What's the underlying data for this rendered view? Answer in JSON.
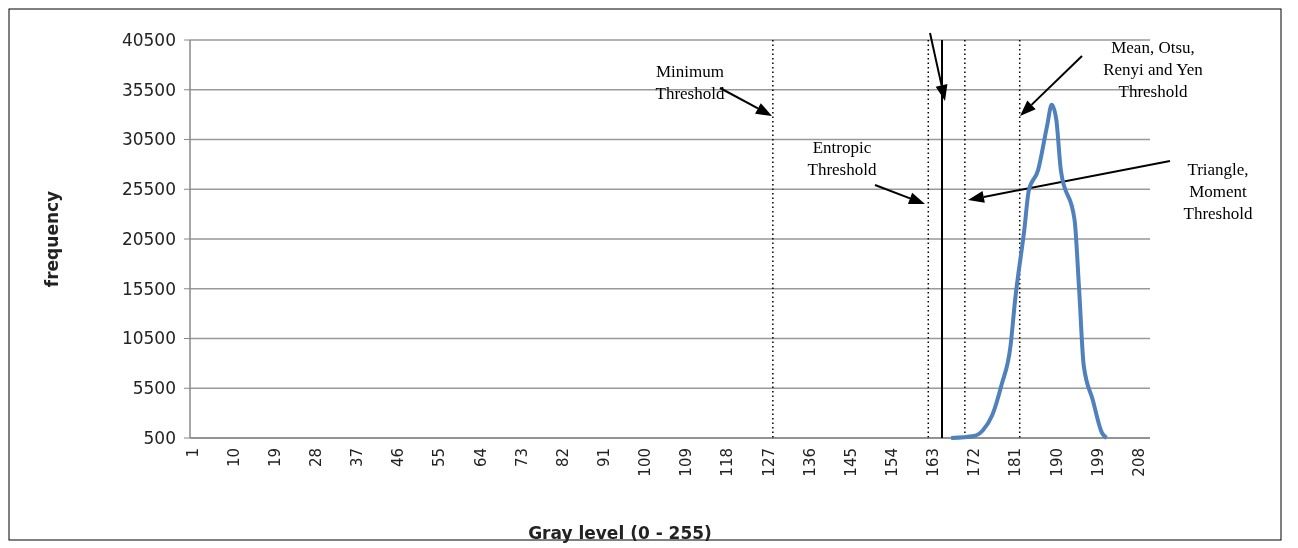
{
  "chart_data": {
    "type": "line",
    "xlabel": "Gray level (0 - 255)",
    "ylabel": "frequency",
    "xlim": [
      0.5,
      210.5
    ],
    "xticks": [
      1,
      10,
      19,
      28,
      37,
      46,
      55,
      64,
      73,
      82,
      91,
      100,
      109,
      118,
      127,
      136,
      145,
      154,
      163,
      172,
      181,
      190,
      199,
      208
    ],
    "ylim": [
      500,
      40500
    ],
    "yticks": [
      500,
      5500,
      10500,
      15500,
      20500,
      25500,
      30500,
      35500,
      40500
    ],
    "grid": "y",
    "series": [
      {
        "color": "#4f81bd",
        "x": [
          167,
          172,
          174,
          176,
          178,
          180,
          181,
          183,
          184,
          186,
          188,
          189,
          190,
          191,
          194,
          195,
          196,
          198,
          200,
          201
        ],
        "values": [
          500,
          700,
          1300,
          2800,
          5800,
          9800,
          14400,
          21400,
          25400,
          27400,
          31900,
          34000,
          32500,
          27400,
          22400,
          15400,
          7800,
          4300,
          1000,
          500
        ]
      }
    ],
    "ref_lines": [
      {
        "axis": "x",
        "value": 128,
        "line_style": "dotted",
        "color": "#000000"
      },
      {
        "axis": "x",
        "value": 162,
        "line_style": "dotted",
        "color": "#000000"
      },
      {
        "axis": "x",
        "value": 165,
        "line_style": "solid",
        "color": "#000000"
      },
      {
        "axis": "x",
        "value": 170,
        "line_style": "dotted",
        "color": "#000000"
      },
      {
        "axis": "x",
        "value": 182,
        "line_style": "dotted",
        "color": "#000000"
      }
    ],
    "annotations": [
      "Minimum Threshold",
      "Entropic Threshold",
      "Triangle, Moment Threshold",
      "Mean, Otsu, Renyi and Yen Threshold"
    ]
  }
}
